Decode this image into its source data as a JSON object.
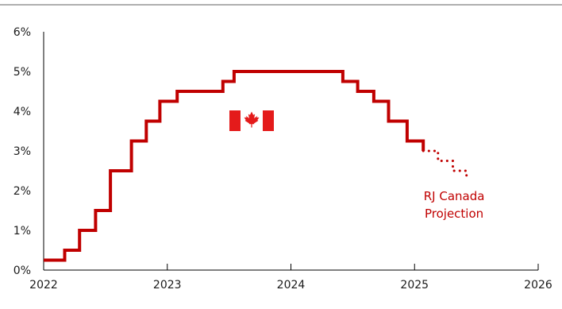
{
  "colors": {
    "series": "#c00000",
    "projection": "#c00000",
    "axis": "#000000",
    "rule": "#7f7f7f",
    "flag_red": "#e41b1b",
    "flag_white": "#ffffff"
  },
  "chart_data": {
    "type": "line",
    "step": true,
    "title": "",
    "xlabel": "",
    "ylabel": "",
    "xlim": [
      2022,
      2026
    ],
    "ylim": [
      0,
      6
    ],
    "grid": false,
    "legend": "none",
    "x_ticks": [
      2022,
      2023,
      2024,
      2025,
      2026
    ],
    "x_tick_labels": [
      "2022",
      "2023",
      "2024",
      "2025",
      "2026"
    ],
    "y_ticks": [
      0,
      1,
      2,
      3,
      4,
      5,
      6
    ],
    "y_tick_labels": [
      "0%",
      "1%",
      "2%",
      "3%",
      "4%",
      "5%",
      "6%"
    ],
    "series": [
      {
        "style": "solid",
        "points": [
          [
            2022.0,
            0.25
          ],
          [
            2022.17,
            0.5
          ],
          [
            2022.29,
            1.0
          ],
          [
            2022.42,
            1.5
          ],
          [
            2022.54,
            2.5
          ],
          [
            2022.71,
            3.25
          ],
          [
            2022.83,
            3.75
          ],
          [
            2022.94,
            4.25
          ],
          [
            2023.08,
            4.5
          ],
          [
            2023.45,
            4.75
          ],
          [
            2023.54,
            5.0
          ],
          [
            2024.42,
            4.75
          ],
          [
            2024.54,
            4.5
          ],
          [
            2024.67,
            4.25
          ],
          [
            2024.79,
            3.75
          ],
          [
            2024.94,
            3.25
          ],
          [
            2025.07,
            3.0
          ]
        ],
        "end_x": 2025.07
      },
      {
        "style": "dotted",
        "points": [
          [
            2025.07,
            3.0
          ],
          [
            2025.19,
            2.75
          ],
          [
            2025.31,
            2.5
          ],
          [
            2025.42,
            2.25
          ]
        ],
        "end_x": 2025.42
      }
    ],
    "annotations": [
      {
        "text_lines": [
          "RJ Canada",
          "Projection"
        ],
        "anchor": "projection"
      }
    ],
    "flag": {
      "name": "canada-flag"
    }
  }
}
